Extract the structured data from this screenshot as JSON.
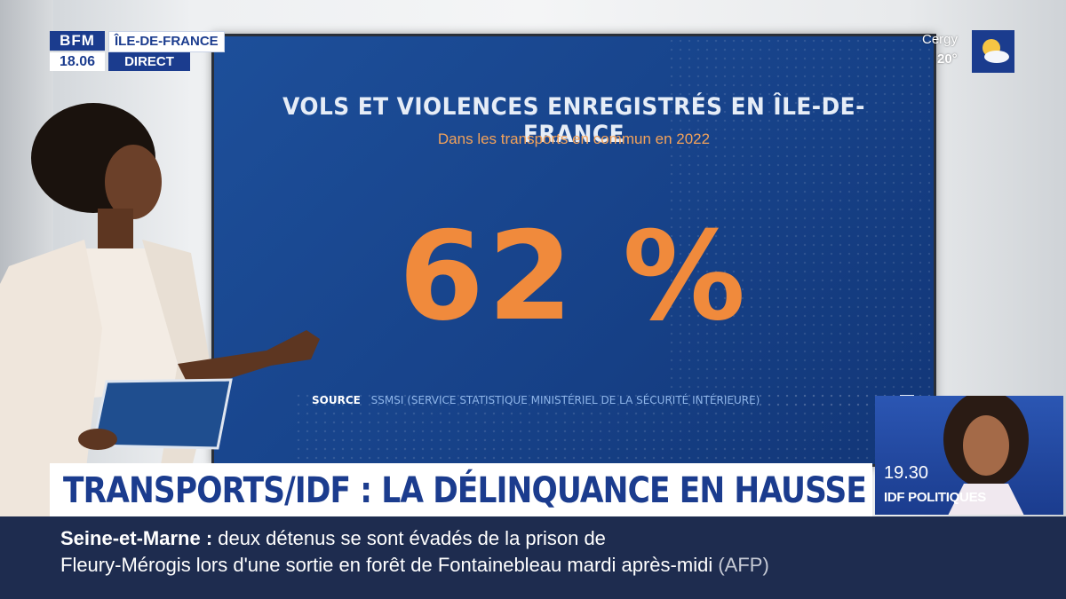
{
  "channel": {
    "logo_text": "BFM",
    "time": "18.06",
    "region": "ÎLE-DE-FRANCE",
    "live_label": "DIRECT"
  },
  "weather": {
    "city": "Cergy",
    "temperature": "20°",
    "icon": "sun-cloud-icon"
  },
  "screen": {
    "title": "VOLS ET VIOLENCES ENREGISTRÉS EN ÎLE-DE-FRANCE",
    "subtitle": "Dans les transports en commun en 2022",
    "value": "62 %",
    "source_label": "SOURCE",
    "source_text": "SSMSI (SERVICE STATISTIQUE MINISTÉRIEL DE LA SÉCURITÉ INTÉRIEURE)"
  },
  "upcoming_show": {
    "time": "19.30",
    "name": "IDF POLITIQUES"
  },
  "headline": "TRANSPORTS/IDF : LA DÉLINQUANCE EN HAUSSE",
  "ticker": {
    "place": "Seine-et-Marne :",
    "line1_text": "deux détenus se sont évadés de la prison de",
    "line2_text": "Fleury-Mérogis lors d'une sortie en forêt de Fontainebleau mardi après-midi",
    "source": "(AFP)"
  },
  "colors": {
    "brand_blue": "#1b3c8e",
    "screen_blue": "#1d4f9a",
    "accent_orange": "#f08a3c",
    "ticker_bg": "#1e2c4f"
  }
}
